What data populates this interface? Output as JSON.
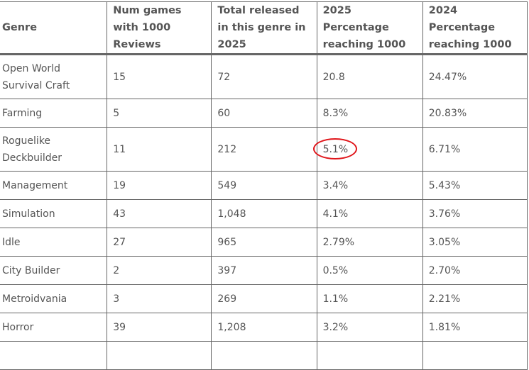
{
  "table": {
    "headers": [
      "Genre",
      "Num games with 1000 Reviews",
      "Total released in this genre in 2025",
      "2025 Percentage reaching 1000",
      "2024 Percentage reaching 1000"
    ],
    "rows": [
      {
        "genre": "Open World Survival Craft",
        "num": "15",
        "total": "72",
        "p2025": "20.8",
        "p2024": "24.47%"
      },
      {
        "genre": "Farming",
        "num": "5",
        "total": "60",
        "p2025": "8.3%",
        "p2024": "20.83%"
      },
      {
        "genre": "Roguelike Deckbuilder",
        "num": "11",
        "total": "212",
        "p2025": "5.1%",
        "p2024": "6.71%"
      },
      {
        "genre": "Management",
        "num": "19",
        "total": "549",
        "p2025": "3.4%",
        "p2024": "5.43%"
      },
      {
        "genre": "Simulation",
        "num": "43",
        "total": "1,048",
        "p2025": "4.1%",
        "p2024": "3.76%"
      },
      {
        "genre": "Idle",
        "num": "27",
        "total": "965",
        "p2025": "2.79%",
        "p2024": "3.05%"
      },
      {
        "genre": "City Builder",
        "num": "2",
        "total": "397",
        "p2025": "0.5%",
        "p2024": "2.70%"
      },
      {
        "genre": "Metroidvania",
        "num": "3",
        "total": "269",
        "p2025": "1.1%",
        "p2024": "2.21%"
      },
      {
        "genre": "Horror",
        "num": "39",
        "total": "1,208",
        "p2025": "3.2%",
        "p2024": "1.81%"
      }
    ]
  },
  "annotation": {
    "type": "red-ellipse",
    "target": "Roguelike Deckbuilder 2025 Percentage",
    "color": "#e0161b"
  }
}
